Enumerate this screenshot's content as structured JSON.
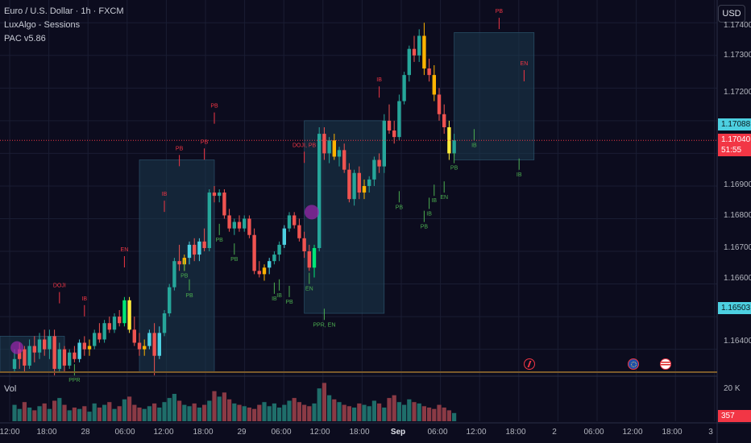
{
  "legend": {
    "symbol": "Euro / U.S. Dollar · 1h · FXCM",
    "indicator1": "LuxAlgo - Sessions",
    "indicator2": "PAC v5.86"
  },
  "currency_button": "USD",
  "volume_label": "Vol",
  "price_axis": {
    "ticks": [
      "1.17400",
      "1.17300",
      "1.17200",
      "1.16900",
      "1.16800",
      "1.16700",
      "1.16600",
      "1.16400"
    ],
    "badge_high": "1.17088",
    "badge_last_price": "1.17040",
    "badge_countdown": "51:55",
    "badge_low": "1.16503"
  },
  "volume_axis": {
    "tick": "20 K",
    "badge": "357"
  },
  "time_axis": [
    "12:00",
    "18:00",
    "28",
    "06:00",
    "12:00",
    "18:00",
    "29",
    "06:00",
    "12:00",
    "18:00",
    "Sep",
    "06:00",
    "12:00",
    "18:00",
    "2",
    "06:00",
    "12:00",
    "18:00",
    "3"
  ],
  "event_icons": [
    "economic-event-icon",
    "eu-flag-event-icon",
    "us-flag-event-icon"
  ],
  "colors": {
    "background": "#0c0c1e",
    "bull": "#26a69a",
    "bear": "#ef5350",
    "cyan": "#4dd0e1",
    "signal_green": "#4caf50",
    "signal_red": "#f23645",
    "session_box": "#1c3a4f",
    "price_line": "#f23645"
  },
  "chart_data": {
    "type": "candlestick",
    "title": "Euro / U.S. Dollar · 1h · FXCM",
    "xlabel": "",
    "ylabel": "",
    "ylim": [
      1.1633,
      1.1745
    ],
    "x_start": 18,
    "x_step": 6.2,
    "candles": [
      {
        "o": 1.1634,
        "h": 1.164,
        "l": 1.1633,
        "c": 1.1637,
        "col": "#26a69a"
      },
      {
        "o": 1.1637,
        "h": 1.1642,
        "l": 1.1634,
        "c": 1.164,
        "col": "#ef5350"
      },
      {
        "o": 1.164,
        "h": 1.1641,
        "l": 1.1633,
        "c": 1.1635,
        "col": "#ef5350"
      },
      {
        "o": 1.1635,
        "h": 1.1643,
        "l": 1.1634,
        "c": 1.1641,
        "col": "#26a69a"
      },
      {
        "o": 1.1641,
        "h": 1.1644,
        "l": 1.1636,
        "c": 1.1639,
        "col": "#ef5350"
      },
      {
        "o": 1.1639,
        "h": 1.1645,
        "l": 1.1637,
        "c": 1.1643,
        "col": "#26a69a"
      },
      {
        "o": 1.1643,
        "h": 1.1646,
        "l": 1.1638,
        "c": 1.164,
        "col": "#ef5350"
      },
      {
        "o": 1.164,
        "h": 1.1646,
        "l": 1.1637,
        "c": 1.1644,
        "col": "#26a69a"
      },
      {
        "o": 1.1644,
        "h": 1.1646,
        "l": 1.1632,
        "c": 1.1634,
        "col": "#ef5350"
      },
      {
        "o": 1.1634,
        "h": 1.1642,
        "l": 1.1633,
        "c": 1.164,
        "col": "#26a69a"
      },
      {
        "o": 1.164,
        "h": 1.1641,
        "l": 1.1633,
        "c": 1.1635,
        "col": "#ef5350"
      },
      {
        "o": 1.1635,
        "h": 1.164,
        "l": 1.1634,
        "c": 1.1639,
        "col": "#26a69a"
      },
      {
        "o": 1.1639,
        "h": 1.1641,
        "l": 1.1636,
        "c": 1.1637,
        "col": "#ef5350"
      },
      {
        "o": 1.1637,
        "h": 1.1643,
        "l": 1.1636,
        "c": 1.1642,
        "col": "#4dd0e1"
      },
      {
        "o": 1.1642,
        "h": 1.1644,
        "l": 1.1638,
        "c": 1.164,
        "col": "#ef5350"
      },
      {
        "o": 1.164,
        "h": 1.1643,
        "l": 1.1638,
        "c": 1.1641,
        "col": "#ffb300"
      },
      {
        "o": 1.1641,
        "h": 1.1646,
        "l": 1.164,
        "c": 1.1645,
        "col": "#26a69a"
      },
      {
        "o": 1.1645,
        "h": 1.1648,
        "l": 1.1642,
        "c": 1.1643,
        "col": "#ef5350"
      },
      {
        "o": 1.1643,
        "h": 1.1649,
        "l": 1.1642,
        "c": 1.1648,
        "col": "#26a69a"
      },
      {
        "o": 1.1648,
        "h": 1.165,
        "l": 1.1645,
        "c": 1.1646,
        "col": "#ef5350"
      },
      {
        "o": 1.1646,
        "h": 1.1651,
        "l": 1.1645,
        "c": 1.165,
        "col": "#26a69a"
      },
      {
        "o": 1.165,
        "h": 1.1652,
        "l": 1.1647,
        "c": 1.1648,
        "col": "#ef5350"
      },
      {
        "o": 1.1648,
        "h": 1.1656,
        "l": 1.1647,
        "c": 1.1655,
        "col": "#00e676"
      },
      {
        "o": 1.1655,
        "h": 1.1656,
        "l": 1.1645,
        "c": 1.1646,
        "col": "#ffeb3b"
      },
      {
        "o": 1.1646,
        "h": 1.165,
        "l": 1.1641,
        "c": 1.1642,
        "col": "#ef5350"
      },
      {
        "o": 1.1642,
        "h": 1.1645,
        "l": 1.1638,
        "c": 1.164,
        "col": "#ef5350"
      },
      {
        "o": 1.164,
        "h": 1.1643,
        "l": 1.1638,
        "c": 1.1641,
        "col": "#ffb300"
      },
      {
        "o": 1.1641,
        "h": 1.1646,
        "l": 1.164,
        "c": 1.1645,
        "col": "#4dd0e1"
      },
      {
        "o": 1.1645,
        "h": 1.1648,
        "l": 1.1632,
        "c": 1.1638,
        "col": "#ef5350"
      },
      {
        "o": 1.1638,
        "h": 1.1647,
        "l": 1.1637,
        "c": 1.1645,
        "col": "#4dd0e1"
      },
      {
        "o": 1.1645,
        "h": 1.1652,
        "l": 1.1644,
        "c": 1.1651,
        "col": "#26a69a"
      },
      {
        "o": 1.1651,
        "h": 1.166,
        "l": 1.165,
        "c": 1.1659,
        "col": "#26a69a"
      },
      {
        "o": 1.1659,
        "h": 1.1668,
        "l": 1.1658,
        "c": 1.1667,
        "col": "#26a69a"
      },
      {
        "o": 1.1667,
        "h": 1.1672,
        "l": 1.1664,
        "c": 1.1666,
        "col": "#ef5350"
      },
      {
        "o": 1.1666,
        "h": 1.1669,
        "l": 1.1664,
        "c": 1.1668,
        "col": "#ffb300"
      },
      {
        "o": 1.1668,
        "h": 1.1673,
        "l": 1.1666,
        "c": 1.1672,
        "col": "#4dd0e1"
      },
      {
        "o": 1.1672,
        "h": 1.1674,
        "l": 1.1667,
        "c": 1.1669,
        "col": "#ef5350"
      },
      {
        "o": 1.1669,
        "h": 1.1674,
        "l": 1.1667,
        "c": 1.1673,
        "col": "#4dd0e1"
      },
      {
        "o": 1.1673,
        "h": 1.1677,
        "l": 1.167,
        "c": 1.1671,
        "col": "#ef5350"
      },
      {
        "o": 1.1671,
        "h": 1.1689,
        "l": 1.167,
        "c": 1.1688,
        "col": "#26a69a"
      },
      {
        "o": 1.1688,
        "h": 1.169,
        "l": 1.1685,
        "c": 1.1687,
        "col": "#ef5350"
      },
      {
        "o": 1.1687,
        "h": 1.1689,
        "l": 1.1685,
        "c": 1.1688,
        "col": "#26a69a"
      },
      {
        "o": 1.1688,
        "h": 1.1689,
        "l": 1.168,
        "c": 1.1681,
        "col": "#ef5350"
      },
      {
        "o": 1.1681,
        "h": 1.1683,
        "l": 1.1676,
        "c": 1.1677,
        "col": "#ef5350"
      },
      {
        "o": 1.1677,
        "h": 1.168,
        "l": 1.1675,
        "c": 1.1679,
        "col": "#26a69a"
      },
      {
        "o": 1.1679,
        "h": 1.1681,
        "l": 1.1676,
        "c": 1.1677,
        "col": "#ef5350"
      },
      {
        "o": 1.1677,
        "h": 1.1681,
        "l": 1.1676,
        "c": 1.168,
        "col": "#26a69a"
      },
      {
        "o": 1.168,
        "h": 1.1681,
        "l": 1.1674,
        "c": 1.1675,
        "col": "#ef5350"
      },
      {
        "o": 1.1675,
        "h": 1.1677,
        "l": 1.1663,
        "c": 1.1664,
        "col": "#ef5350"
      },
      {
        "o": 1.1664,
        "h": 1.1667,
        "l": 1.1662,
        "c": 1.1663,
        "col": "#ef5350"
      },
      {
        "o": 1.1663,
        "h": 1.1666,
        "l": 1.1661,
        "c": 1.1665,
        "col": "#ffb300"
      },
      {
        "o": 1.1665,
        "h": 1.1668,
        "l": 1.1663,
        "c": 1.1667,
        "col": "#4dd0e1"
      },
      {
        "o": 1.1667,
        "h": 1.167,
        "l": 1.1666,
        "c": 1.1669,
        "col": "#26a69a"
      },
      {
        "o": 1.1669,
        "h": 1.1673,
        "l": 1.1667,
        "c": 1.1672,
        "col": "#26a69a"
      },
      {
        "o": 1.1672,
        "h": 1.1678,
        "l": 1.1671,
        "c": 1.1677,
        "col": "#4dd0e1"
      },
      {
        "o": 1.1677,
        "h": 1.1682,
        "l": 1.1676,
        "c": 1.1681,
        "col": "#26a69a"
      },
      {
        "o": 1.1681,
        "h": 1.1682,
        "l": 1.1677,
        "c": 1.1678,
        "col": "#ef5350"
      },
      {
        "o": 1.1678,
        "h": 1.168,
        "l": 1.1673,
        "c": 1.1674,
        "col": "#ef5350"
      },
      {
        "o": 1.1674,
        "h": 1.1676,
        "l": 1.1668,
        "c": 1.167,
        "col": "#ef5350"
      },
      {
        "o": 1.167,
        "h": 1.1672,
        "l": 1.1664,
        "c": 1.1665,
        "col": "#ef5350"
      },
      {
        "o": 1.1665,
        "h": 1.1672,
        "l": 1.1662,
        "c": 1.1671,
        "col": "#00e676"
      },
      {
        "o": 1.1671,
        "h": 1.1708,
        "l": 1.167,
        "c": 1.1706,
        "col": "#26a69a"
      },
      {
        "o": 1.1706,
        "h": 1.1708,
        "l": 1.1698,
        "c": 1.17,
        "col": "#ef5350"
      },
      {
        "o": 1.17,
        "h": 1.1705,
        "l": 1.1697,
        "c": 1.1704,
        "col": "#26a69a"
      },
      {
        "o": 1.1704,
        "h": 1.1706,
        "l": 1.1698,
        "c": 1.1699,
        "col": "#ffb300"
      },
      {
        "o": 1.1699,
        "h": 1.1702,
        "l": 1.1696,
        "c": 1.1701,
        "col": "#26a69a"
      },
      {
        "o": 1.1701,
        "h": 1.1703,
        "l": 1.1694,
        "c": 1.1695,
        "col": "#ef5350"
      },
      {
        "o": 1.1695,
        "h": 1.1697,
        "l": 1.1685,
        "c": 1.1686,
        "col": "#ef5350"
      },
      {
        "o": 1.1686,
        "h": 1.1695,
        "l": 1.1684,
        "c": 1.1694,
        "col": "#26a69a"
      },
      {
        "o": 1.1694,
        "h": 1.1696,
        "l": 1.1686,
        "c": 1.1688,
        "col": "#ef5350"
      },
      {
        "o": 1.1688,
        "h": 1.1692,
        "l": 1.1686,
        "c": 1.169,
        "col": "#ffb300"
      },
      {
        "o": 1.169,
        "h": 1.1693,
        "l": 1.1688,
        "c": 1.1692,
        "col": "#26a69a"
      },
      {
        "o": 1.1692,
        "h": 1.1699,
        "l": 1.169,
        "c": 1.1698,
        "col": "#26a69a"
      },
      {
        "o": 1.1698,
        "h": 1.17,
        "l": 1.1694,
        "c": 1.1696,
        "col": "#ef5350"
      },
      {
        "o": 1.1696,
        "h": 1.1712,
        "l": 1.1694,
        "c": 1.171,
        "col": "#26a69a"
      },
      {
        "o": 1.171,
        "h": 1.1715,
        "l": 1.1706,
        "c": 1.1707,
        "col": "#ef5350"
      },
      {
        "o": 1.1707,
        "h": 1.171,
        "l": 1.1703,
        "c": 1.1705,
        "col": "#ef5350"
      },
      {
        "o": 1.1705,
        "h": 1.1718,
        "l": 1.1704,
        "c": 1.1716,
        "col": "#26a69a"
      },
      {
        "o": 1.1716,
        "h": 1.1725,
        "l": 1.1715,
        "c": 1.1724,
        "col": "#26a69a"
      },
      {
        "o": 1.1724,
        "h": 1.1733,
        "l": 1.1722,
        "c": 1.1732,
        "col": "#26a69a"
      },
      {
        "o": 1.1732,
        "h": 1.1736,
        "l": 1.1728,
        "c": 1.173,
        "col": "#ef5350"
      },
      {
        "o": 1.173,
        "h": 1.1738,
        "l": 1.1728,
        "c": 1.1736,
        "col": "#26a69a"
      },
      {
        "o": 1.1736,
        "h": 1.174,
        "l": 1.1724,
        "c": 1.1726,
        "col": "#ffb300"
      },
      {
        "o": 1.1726,
        "h": 1.1729,
        "l": 1.1722,
        "c": 1.1724,
        "col": "#ef5350"
      },
      {
        "o": 1.1724,
        "h": 1.1727,
        "l": 1.1716,
        "c": 1.1718,
        "col": "#ffb300"
      },
      {
        "o": 1.1718,
        "h": 1.172,
        "l": 1.171,
        "c": 1.1712,
        "col": "#ef5350"
      },
      {
        "o": 1.1712,
        "h": 1.1715,
        "l": 1.1706,
        "c": 1.1708,
        "col": "#ef5350"
      },
      {
        "o": 1.1708,
        "h": 1.171,
        "l": 1.1698,
        "c": 1.17,
        "col": "#ffeb3b"
      },
      {
        "o": 1.17,
        "h": 1.1706,
        "l": 1.1699,
        "c": 1.1704,
        "col": "#26a69a"
      }
    ],
    "volume": [
      12,
      9,
      14,
      10,
      8,
      11,
      13,
      9,
      15,
      17,
      12,
      8,
      10,
      9,
      11,
      7,
      13,
      10,
      12,
      14,
      9,
      11,
      16,
      18,
      12,
      10,
      9,
      11,
      13,
      10,
      14,
      17,
      20,
      15,
      12,
      11,
      13,
      10,
      12,
      15,
      22,
      18,
      21,
      16,
      13,
      12,
      11,
      10,
      9,
      12,
      14,
      11,
      13,
      10,
      12,
      15,
      17,
      14,
      12,
      11,
      13,
      24,
      28,
      19,
      16,
      14,
      12,
      11,
      10,
      13,
      12,
      11,
      15,
      13,
      10,
      17,
      19,
      14,
      12,
      16,
      14,
      13,
      11,
      10,
      9,
      12,
      10,
      8,
      6
    ],
    "signals": [
      {
        "t": "PPR",
        "i": 12,
        "y": 1.163,
        "c": "#4caf50"
      },
      {
        "t": "DOJI",
        "i": 9,
        "y": 1.1659,
        "c": "#f23645"
      },
      {
        "t": "IB",
        "i": 14,
        "y": 1.1655,
        "c": "#f23645"
      },
      {
        "t": "EN",
        "i": 22,
        "y": 1.167,
        "c": "#f23645"
      },
      {
        "t": "PB",
        "i": 35,
        "y": 1.1656,
        "c": "#4caf50"
      },
      {
        "t": "PB",
        "i": 34,
        "y": 1.1662,
        "c": "#4caf50"
      },
      {
        "t": "IB",
        "i": 30,
        "y": 1.1687,
        "c": "#f23645"
      },
      {
        "t": "PB",
        "i": 33,
        "y": 1.1701,
        "c": "#f23645"
      },
      {
        "t": "PB",
        "i": 38,
        "y": 1.1703,
        "c": "#f23645"
      },
      {
        "t": "PB",
        "i": 41,
        "y": 1.1673,
        "c": "#4caf50"
      },
      {
        "t": "PB",
        "i": 44,
        "y": 1.1667,
        "c": "#4caf50"
      },
      {
        "t": "PB",
        "i": 40,
        "y": 1.1714,
        "c": "#f23645"
      },
      {
        "t": "IB",
        "i": 52,
        "y": 1.1655,
        "c": "#4caf50"
      },
      {
        "t": "IB",
        "i": 53,
        "y": 1.1656,
        "c": "#4caf50"
      },
      {
        "t": "PB",
        "i": 55,
        "y": 1.1654,
        "c": "#4caf50"
      },
      {
        "t": "EN",
        "i": 59,
        "y": 1.1658,
        "c": "#4caf50"
      },
      {
        "t": "DOJI, PB",
        "i": 58,
        "y": 1.1702,
        "c": "#f23645"
      },
      {
        "t": "PPR, EN",
        "i": 62,
        "y": 1.1647,
        "c": "#4caf50"
      },
      {
        "t": "IB",
        "i": 73,
        "y": 1.1722,
        "c": "#f23645"
      },
      {
        "t": "PB",
        "i": 77,
        "y": 1.1683,
        "c": "#4caf50"
      },
      {
        "t": "PB",
        "i": 82,
        "y": 1.1677,
        "c": "#4caf50"
      },
      {
        "t": "IB",
        "i": 83,
        "y": 1.1681,
        "c": "#4caf50"
      },
      {
        "t": "IB",
        "i": 84,
        "y": 1.1685,
        "c": "#4caf50"
      },
      {
        "t": "EN",
        "i": 86,
        "y": 1.1686,
        "c": "#4caf50"
      },
      {
        "t": "PB",
        "i": 88,
        "y": 1.1695,
        "c": "#4caf50"
      },
      {
        "t": "IB",
        "i": 92,
        "y": 1.1702,
        "c": "#4caf50"
      },
      {
        "t": "PB",
        "i": 97,
        "y": 1.1743,
        "c": "#f23645"
      },
      {
        "t": "EN",
        "i": 102,
        "y": 1.1727,
        "c": "#f23645"
      },
      {
        "t": "IB",
        "i": 101,
        "y": 1.1693,
        "c": "#4caf50"
      }
    ],
    "sessions": [
      {
        "from": 1.1633,
        "to": 1.1644,
        "i0": -3,
        "i1": 10
      },
      {
        "from": 1.1633,
        "to": 1.1698,
        "i0": 25,
        "i1": 40
      },
      {
        "from": 1.1651,
        "to": 1.171,
        "i0": 58,
        "i1": 74
      },
      {
        "from": 1.1698,
        "to": 1.1737,
        "i0": 88,
        "i1": 104
      }
    ],
    "last_price": 1.1704
  }
}
